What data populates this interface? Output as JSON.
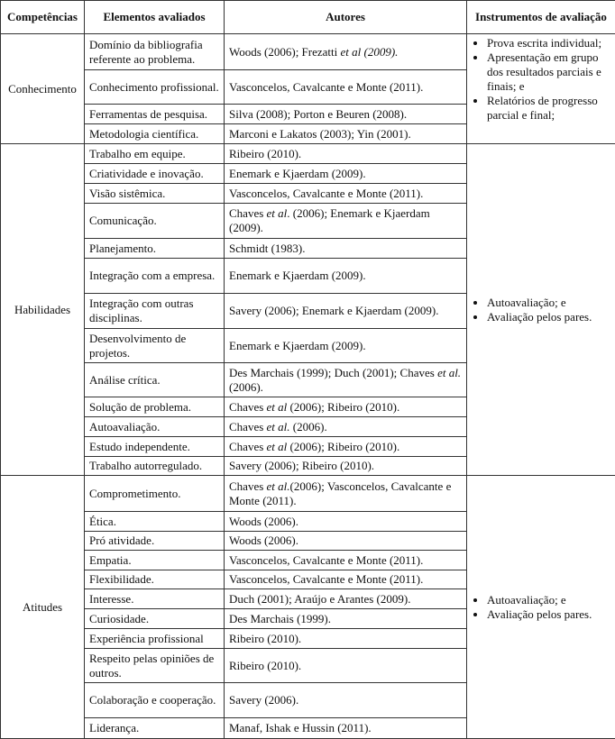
{
  "table": {
    "headers": [
      "Competências",
      "Elementos avaliados",
      "Autores",
      "Instrumentos de avaliação"
    ],
    "groups": [
      {
        "competence": "Conhecimento",
        "rows": [
          {
            "element": "Domínio da bibliografia referente ao problema.",
            "authors": [
              "Woods (2006); Frezatti ",
              "et al (2009)."
            ]
          },
          {
            "element": "Conhecimento profissional.",
            "authors": [
              "Vasconcelos, Cavalcante e Monte (2011)."
            ]
          },
          {
            "element": "Ferramentas de pesquisa.",
            "authors": [
              "Silva (2008); Porton e Beuren (2008)."
            ]
          },
          {
            "element": "Metodologia científica.",
            "authors": [
              "Marconi e Lakatos (2003); Yin (2001)."
            ]
          }
        ],
        "instruments": [
          "Prova escrita individual;",
          "Apresentação em grupo dos resultados parciais e finais; e",
          "Relatórios de progresso parcial e final;"
        ]
      },
      {
        "competence": "Habilidades",
        "rows": [
          {
            "element": "Trabalho em equipe.",
            "authors": [
              "Ribeiro (2010)."
            ]
          },
          {
            "element": "Criatividade e inovação.",
            "authors": [
              "Enemark e Kjaerdam (2009)."
            ]
          },
          {
            "element": "Visão sistêmica.",
            "authors": [
              "Vasconcelos, Cavalcante e Monte (2011)."
            ]
          },
          {
            "element": "Comunicação.",
            "authors": [
              "Chaves ",
              "et al",
              ". (2006); Enemark e Kjaerdam (2009)."
            ]
          },
          {
            "element": "Planejamento.",
            "authors": [
              "Schmidt (1983)."
            ]
          },
          {
            "element": "Integração com a empresa.",
            "authors": [
              "Enemark e Kjaerdam (2009)."
            ]
          },
          {
            "element": "Integração com outras disciplinas.",
            "authors": [
              "Savery (2006); Enemark e Kjaerdam (2009)."
            ]
          },
          {
            "element": "Desenvolvimento de projetos.",
            "authors": [
              "Enemark e Kjaerdam (2009)."
            ]
          },
          {
            "element": "Análise crítica.",
            "authors": [
              "Des Marchais (1999); Duch (2001); Chaves ",
              "et al.",
              "(2006)."
            ]
          },
          {
            "element": "Solução de problema.",
            "authors": [
              "Chaves ",
              "et al",
              " (2006); Ribeiro (2010)."
            ]
          },
          {
            "element": "Autoavaliação.",
            "authors": [
              "Chaves ",
              "et al.",
              " (2006)."
            ]
          },
          {
            "element": "Estudo independente.",
            "authors": [
              "Chaves ",
              "et al",
              " (2006); Ribeiro (2010)."
            ]
          },
          {
            "element": "Trabalho autorregulado.",
            "authors": [
              "Savery (2006); Ribeiro (2010)."
            ]
          }
        ],
        "instruments": [
          "Autoavaliação; e",
          "Avaliação pelos pares."
        ]
      },
      {
        "competence": "Atitudes",
        "rows": [
          {
            "element": "Comprometimento.",
            "authors": [
              "Chaves ",
              "et al.",
              "(2006); Vasconcelos, Cavalcante e Monte (2011)."
            ]
          },
          {
            "element": "Ética.",
            "authors": [
              "Woods (2006)."
            ]
          },
          {
            "element": "Pró atividade.",
            "authors": [
              "Woods (2006)."
            ]
          },
          {
            "element": "Empatia.",
            "authors": [
              "Vasconcelos, Cavalcante e Monte (2011)."
            ]
          },
          {
            "element": "Flexibilidade.",
            "authors": [
              "Vasconcelos, Cavalcante e Monte (2011)."
            ]
          },
          {
            "element": "Interesse.",
            "authors": [
              "Duch (2001); Araújo e Arantes (2009)."
            ]
          },
          {
            "element": "Curiosidade.",
            "authors": [
              "Des Marchais (1999)."
            ]
          },
          {
            "element": "Experiência profissional",
            "authors": [
              "Ribeiro (2010)."
            ]
          },
          {
            "element": "Respeito pelas opiniões de outros.",
            "authors": [
              "Ribeiro (2010)."
            ]
          },
          {
            "element": "Colaboração e cooperação.",
            "authors": [
              "Savery (2006)."
            ]
          },
          {
            "element": "Liderança.",
            "authors": [
              "Manaf, Ishak e Hussin (2011)."
            ]
          }
        ],
        "instruments": [
          "Autoavaliação; e",
          "Avaliação pelos pares."
        ]
      }
    ]
  }
}
